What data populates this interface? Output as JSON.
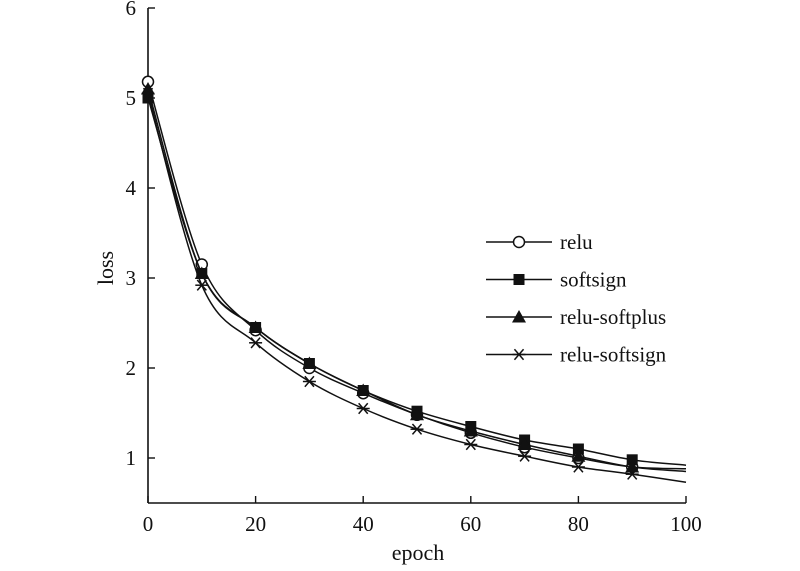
{
  "chart_data": {
    "type": "line",
    "xlabel": "epoch",
    "ylabel": "loss",
    "xlim": [
      0,
      100
    ],
    "ylim": [
      0.5,
      6
    ],
    "xticks": [
      0,
      20,
      40,
      60,
      80,
      100
    ],
    "yticks": [
      1,
      2,
      3,
      4,
      5,
      6
    ],
    "legend_position": "right",
    "grid": false,
    "marker_x": [
      0,
      10,
      20,
      30,
      40,
      50,
      60,
      70,
      80,
      90
    ],
    "series": [
      {
        "name": "relu",
        "marker": "circle-open",
        "values": [
          5.18,
          3.15,
          2.42,
          2.0,
          1.72,
          1.48,
          1.28,
          1.12,
          1.0,
          0.9
        ],
        "end_value": 0.88
      },
      {
        "name": "softsign",
        "marker": "square-filled",
        "values": [
          5.0,
          3.05,
          2.45,
          2.05,
          1.75,
          1.52,
          1.35,
          1.2,
          1.1,
          0.98
        ],
        "end_value": 0.92
      },
      {
        "name": "relu-softplus",
        "marker": "triangle-filled",
        "values": [
          5.1,
          3.05,
          2.45,
          2.05,
          1.75,
          1.48,
          1.3,
          1.15,
          1.02,
          0.9
        ],
        "end_value": 0.85
      },
      {
        "name": "relu-softsign",
        "marker": "asterisk",
        "values": [
          5.05,
          2.92,
          2.28,
          1.85,
          1.55,
          1.32,
          1.15,
          1.02,
          0.9,
          0.82
        ],
        "end_value": 0.73
      }
    ]
  }
}
